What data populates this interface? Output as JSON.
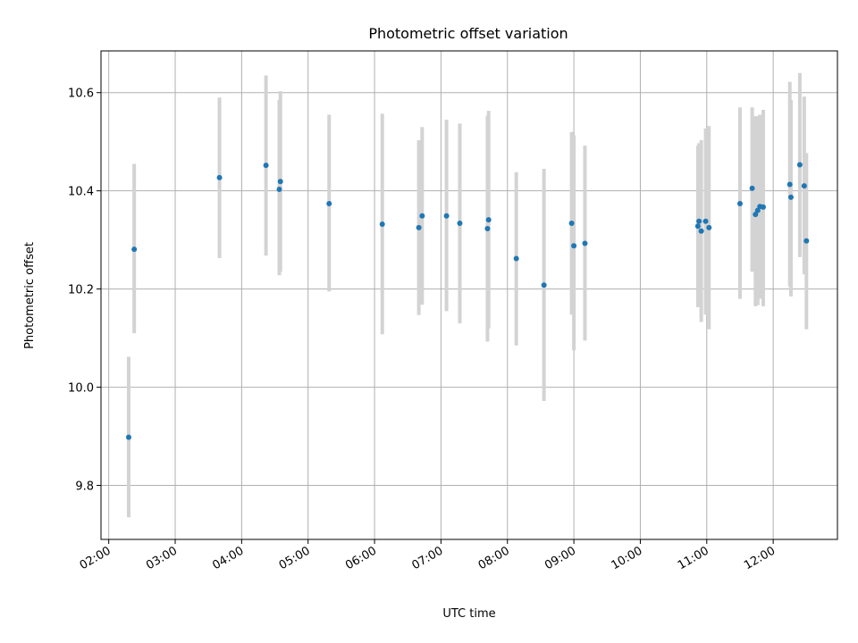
{
  "chart_data": {
    "type": "scatter",
    "title": "Photometric offset variation",
    "xlabel": "UTC time",
    "ylabel": "Photometric offset",
    "xlim": [
      "01:53",
      "12:58"
    ],
    "ylim": [
      9.69,
      10.685
    ],
    "xticks": [
      "02:00",
      "03:00",
      "04:00",
      "05:00",
      "06:00",
      "07:00",
      "08:00",
      "09:00",
      "10:00",
      "11:00",
      "12:00"
    ],
    "yticks": [
      "9.8",
      "10.0",
      "10.2",
      "10.4",
      "10.6"
    ],
    "grid": true,
    "colors": {
      "points": "#1f77b4",
      "error_bars": "#d3d3d3",
      "grid": "#b0b0b0"
    },
    "points": [
      {
        "t": "02:18",
        "y": 9.898,
        "lo": 9.735,
        "hi": 10.062
      },
      {
        "t": "02:23",
        "y": 10.281,
        "lo": 10.11,
        "hi": 10.455
      },
      {
        "t": "03:40",
        "y": 10.427,
        "lo": 10.263,
        "hi": 10.59
      },
      {
        "t": "04:22",
        "y": 10.452,
        "lo": 10.268,
        "hi": 10.635
      },
      {
        "t": "04:34",
        "y": 10.403,
        "lo": 10.228,
        "hi": 10.585
      },
      {
        "t": "04:35",
        "y": 10.419,
        "lo": 10.235,
        "hi": 10.603
      },
      {
        "t": "05:19",
        "y": 10.374,
        "lo": 10.195,
        "hi": 10.555
      },
      {
        "t": "06:07",
        "y": 10.332,
        "lo": 10.108,
        "hi": 10.557
      },
      {
        "t": "06:40",
        "y": 10.325,
        "lo": 10.147,
        "hi": 10.503
      },
      {
        "t": "06:43",
        "y": 10.349,
        "lo": 10.168,
        "hi": 10.53
      },
      {
        "t": "07:05",
        "y": 10.349,
        "lo": 10.155,
        "hi": 10.545
      },
      {
        "t": "07:17",
        "y": 10.334,
        "lo": 10.13,
        "hi": 10.537
      },
      {
        "t": "07:42",
        "y": 10.323,
        "lo": 10.093,
        "hi": 10.553
      },
      {
        "t": "07:43",
        "y": 10.341,
        "lo": 10.12,
        "hi": 10.563
      },
      {
        "t": "08:08",
        "y": 10.262,
        "lo": 10.085,
        "hi": 10.438
      },
      {
        "t": "08:33",
        "y": 10.208,
        "lo": 9.972,
        "hi": 10.445
      },
      {
        "t": "08:58",
        "y": 10.334,
        "lo": 10.148,
        "hi": 10.52
      },
      {
        "t": "09:00",
        "y": 10.288,
        "lo": 10.075,
        "hi": 10.513
      },
      {
        "t": "09:10",
        "y": 10.293,
        "lo": 10.095,
        "hi": 10.492
      },
      {
        "t": "10:52",
        "y": 10.328,
        "lo": 10.163,
        "hi": 10.492
      },
      {
        "t": "10:53",
        "y": 10.338,
        "lo": 10.168,
        "hi": 10.497
      },
      {
        "t": "10:55",
        "y": 10.318,
        "lo": 10.133,
        "hi": 10.503
      },
      {
        "t": "10:59",
        "y": 10.338,
        "lo": 10.148,
        "hi": 10.527
      },
      {
        "t": "11:02",
        "y": 10.325,
        "lo": 10.118,
        "hi": 10.532
      },
      {
        "t": "11:30",
        "y": 10.374,
        "lo": 10.18,
        "hi": 10.57
      },
      {
        "t": "11:41",
        "y": 10.405,
        "lo": 10.235,
        "hi": 10.57
      },
      {
        "t": "11:44",
        "y": 10.352,
        "lo": 10.165,
        "hi": 10.552
      },
      {
        "t": "11:46",
        "y": 10.36,
        "lo": 10.167,
        "hi": 10.552
      },
      {
        "t": "11:48",
        "y": 10.368,
        "lo": 10.18,
        "hi": 10.555
      },
      {
        "t": "11:51",
        "y": 10.367,
        "lo": 10.165,
        "hi": 10.565
      },
      {
        "t": "12:15",
        "y": 10.413,
        "lo": 10.205,
        "hi": 10.622
      },
      {
        "t": "12:16",
        "y": 10.387,
        "lo": 10.185,
        "hi": 10.585
      },
      {
        "t": "12:24",
        "y": 10.453,
        "lo": 10.265,
        "hi": 10.64
      },
      {
        "t": "12:28",
        "y": 10.41,
        "lo": 10.23,
        "hi": 10.592
      },
      {
        "t": "12:30",
        "y": 10.298,
        "lo": 10.118,
        "hi": 10.477
      }
    ]
  }
}
